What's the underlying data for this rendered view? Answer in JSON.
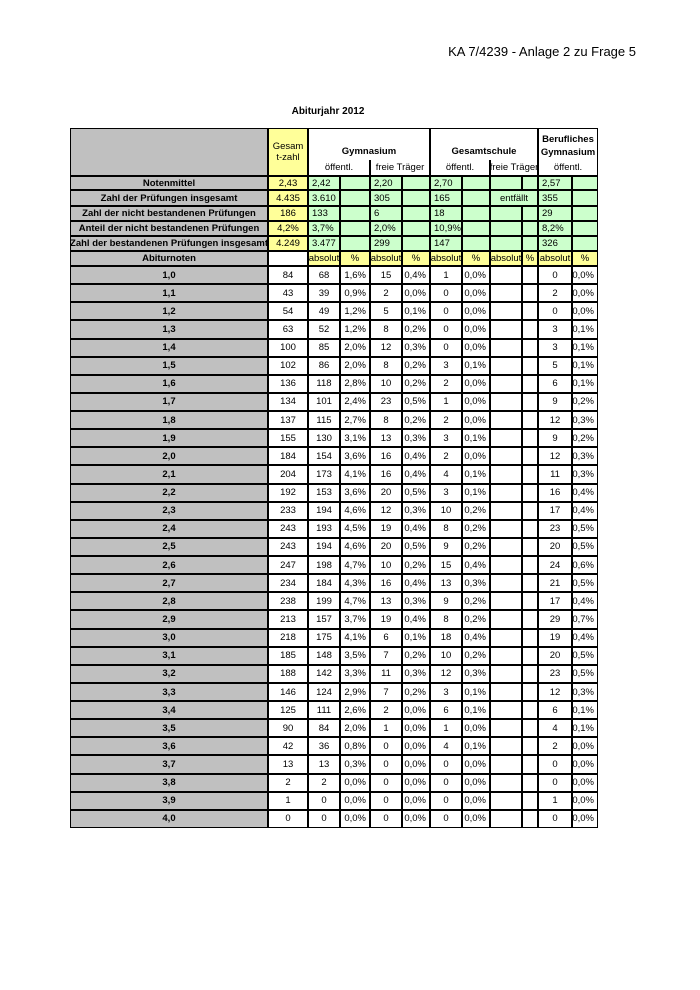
{
  "header": {
    "reference": "KA 7/4239 - Anlage 2 zu Frage 5"
  },
  "table": {
    "title": "Abiturjahr 2012",
    "head": {
      "gesamtzahl": "Gesamt-zahl",
      "gymnasium": "Gymnasium",
      "gesamtschule": "Gesamtschule",
      "berufliches_gymnasium": "Berufliches Gymnasium",
      "gym_oeffentl": "öffentl.",
      "gym_frei": "freie Träger",
      "gs_oeffentl": "öffentl.",
      "gs_frei": "freie Träger",
      "bg_oeffentl": "öffentl."
    },
    "summary": [
      {
        "label": "Notenmittel",
        "gesamt": "2,43",
        "gym_oeff": "2,42",
        "gym_frei": "2,20",
        "gs_oeff": "2,70",
        "bg": "2,57"
      },
      {
        "label": "Zahl der Prüfungen insgesamt",
        "gesamt": "4.435",
        "gym_oeff": "3.610",
        "gym_frei": "305",
        "gs_oeff": "165",
        "gs_frei": "entfällt",
        "bg": "355"
      },
      {
        "label": "Zahl der nicht bestandenen Prüfungen",
        "gesamt": "186",
        "gym_oeff": "133",
        "gym_frei": "6",
        "gs_oeff": "18",
        "bg": "29"
      },
      {
        "label": "Anteil der nicht bestandenen Prüfungen",
        "gesamt": "4,2%",
        "gym_oeff": "3,7%",
        "gym_frei": "2,0%",
        "gs_oeff": "10,9%",
        "bg": "8,2%"
      },
      {
        "label": "Zahl der bestandenen Prüfungen insgesamt",
        "gesamt": "4.249",
        "gym_oeff": "3.477",
        "gym_frei": "299",
        "gs_oeff": "147",
        "bg": "326"
      }
    ],
    "abiturnoten_row": {
      "label": "Abiturnoten",
      "col_labels": [
        "absolut",
        "%",
        "absolut",
        "%",
        "absolut",
        "%",
        "absolut",
        "%",
        "absolut",
        "%"
      ]
    },
    "rows": [
      {
        "note": "1,0",
        "cells": [
          "84",
          "68",
          "1,6%",
          "15",
          "0,4%",
          "1",
          "0,0%",
          "0",
          "0,0%"
        ]
      },
      {
        "note": "1,1",
        "cells": [
          "43",
          "39",
          "0,9%",
          "2",
          "0,0%",
          "0",
          "0,0%",
          "2",
          "0,0%"
        ]
      },
      {
        "note": "1,2",
        "cells": [
          "54",
          "49",
          "1,2%",
          "5",
          "0,1%",
          "0",
          "0,0%",
          "0",
          "0,0%"
        ]
      },
      {
        "note": "1,3",
        "cells": [
          "63",
          "52",
          "1,2%",
          "8",
          "0,2%",
          "0",
          "0,0%",
          "3",
          "0,1%"
        ]
      },
      {
        "note": "1,4",
        "cells": [
          "100",
          "85",
          "2,0%",
          "12",
          "0,3%",
          "0",
          "0,0%",
          "3",
          "0,1%"
        ]
      },
      {
        "note": "1,5",
        "cells": [
          "102",
          "86",
          "2,0%",
          "8",
          "0,2%",
          "3",
          "0,1%",
          "5",
          "0,1%"
        ]
      },
      {
        "note": "1,6",
        "cells": [
          "136",
          "118",
          "2,8%",
          "10",
          "0,2%",
          "2",
          "0,0%",
          "6",
          "0,1%"
        ]
      },
      {
        "note": "1,7",
        "cells": [
          "134",
          "101",
          "2,4%",
          "23",
          "0,5%",
          "1",
          "0,0%",
          "9",
          "0,2%"
        ]
      },
      {
        "note": "1,8",
        "cells": [
          "137",
          "115",
          "2,7%",
          "8",
          "0,2%",
          "2",
          "0,0%",
          "12",
          "0,3%"
        ]
      },
      {
        "note": "1,9",
        "cells": [
          "155",
          "130",
          "3,1%",
          "13",
          "0,3%",
          "3",
          "0,1%",
          "9",
          "0,2%"
        ]
      },
      {
        "note": "2,0",
        "cells": [
          "184",
          "154",
          "3,6%",
          "16",
          "0,4%",
          "2",
          "0,0%",
          "12",
          "0,3%"
        ]
      },
      {
        "note": "2,1",
        "cells": [
          "204",
          "173",
          "4,1%",
          "16",
          "0,4%",
          "4",
          "0,1%",
          "11",
          "0,3%"
        ]
      },
      {
        "note": "2,2",
        "cells": [
          "192",
          "153",
          "3,6%",
          "20",
          "0,5%",
          "3",
          "0,1%",
          "16",
          "0,4%"
        ]
      },
      {
        "note": "2,3",
        "cells": [
          "233",
          "194",
          "4,6%",
          "12",
          "0,3%",
          "10",
          "0,2%",
          "17",
          "0,4%"
        ]
      },
      {
        "note": "2,4",
        "cells": [
          "243",
          "193",
          "4,5%",
          "19",
          "0,4%",
          "8",
          "0,2%",
          "23",
          "0,5%"
        ]
      },
      {
        "note": "2,5",
        "cells": [
          "243",
          "194",
          "4,6%",
          "20",
          "0,5%",
          "9",
          "0,2%",
          "20",
          "0,5%"
        ]
      },
      {
        "note": "2,6",
        "cells": [
          "247",
          "198",
          "4,7%",
          "10",
          "0,2%",
          "15",
          "0,4%",
          "24",
          "0,6%"
        ]
      },
      {
        "note": "2,7",
        "cells": [
          "234",
          "184",
          "4,3%",
          "16",
          "0,4%",
          "13",
          "0,3%",
          "21",
          "0,5%"
        ]
      },
      {
        "note": "2,8",
        "cells": [
          "238",
          "199",
          "4,7%",
          "13",
          "0,3%",
          "9",
          "0,2%",
          "17",
          "0,4%"
        ]
      },
      {
        "note": "2,9",
        "cells": [
          "213",
          "157",
          "3,7%",
          "19",
          "0,4%",
          "8",
          "0,2%",
          "29",
          "0,7%"
        ]
      },
      {
        "note": "3,0",
        "cells": [
          "218",
          "175",
          "4,1%",
          "6",
          "0,1%",
          "18",
          "0,4%",
          "19",
          "0,4%"
        ]
      },
      {
        "note": "3,1",
        "cells": [
          "185",
          "148",
          "3,5%",
          "7",
          "0,2%",
          "10",
          "0,2%",
          "20",
          "0,5%"
        ]
      },
      {
        "note": "3,2",
        "cells": [
          "188",
          "142",
          "3,3%",
          "11",
          "0,3%",
          "12",
          "0,3%",
          "23",
          "0,5%"
        ]
      },
      {
        "note": "3,3",
        "cells": [
          "146",
          "124",
          "2,9%",
          "7",
          "0,2%",
          "3",
          "0,1%",
          "12",
          "0,3%"
        ]
      },
      {
        "note": "3,4",
        "cells": [
          "125",
          "111",
          "2,6%",
          "2",
          "0,0%",
          "6",
          "0,1%",
          "6",
          "0,1%"
        ]
      },
      {
        "note": "3,5",
        "cells": [
          "90",
          "84",
          "2,0%",
          "1",
          "0,0%",
          "1",
          "0,0%",
          "4",
          "0,1%"
        ]
      },
      {
        "note": "3,6",
        "cells": [
          "42",
          "36",
          "0,8%",
          "0",
          "0,0%",
          "4",
          "0,1%",
          "2",
          "0,0%"
        ]
      },
      {
        "note": "3,7",
        "cells": [
          "13",
          "13",
          "0,3%",
          "0",
          "0,0%",
          "0",
          "0,0%",
          "0",
          "0,0%"
        ]
      },
      {
        "note": "3,8",
        "cells": [
          "2",
          "2",
          "0,0%",
          "0",
          "0,0%",
          "0",
          "0,0%",
          "0",
          "0,0%"
        ]
      },
      {
        "note": "3,9",
        "cells": [
          "1",
          "0",
          "0,0%",
          "0",
          "0,0%",
          "0",
          "0,0%",
          "1",
          "0,0%"
        ]
      },
      {
        "note": "4,0",
        "cells": [
          "0",
          "0",
          "0,0%",
          "0",
          "0,0%",
          "0",
          "0,0%",
          "0",
          "0,0%"
        ]
      }
    ]
  }
}
